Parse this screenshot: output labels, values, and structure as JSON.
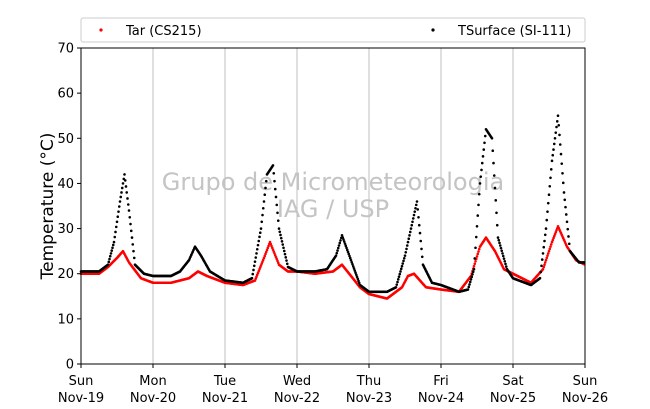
{
  "chart_data": {
    "type": "scatter",
    "title": "",
    "xlabel": "",
    "ylabel": "Temperature (°C)",
    "ylim": [
      0,
      70
    ],
    "yticks": [
      0,
      10,
      20,
      30,
      40,
      50,
      60,
      70
    ],
    "xlim": [
      0,
      7
    ],
    "xticks": [
      {
        "day": "Sun",
        "date": "Nov-19"
      },
      {
        "day": "Mon",
        "date": "Nov-20"
      },
      {
        "day": "Tue",
        "date": "Nov-21"
      },
      {
        "day": "Wed",
        "date": "Nov-22"
      },
      {
        "day": "Thu",
        "date": "Nov-23"
      },
      {
        "day": "Fri",
        "date": "Nov-24"
      },
      {
        "day": "Sat",
        "date": "Nov-25"
      },
      {
        "day": "Sun",
        "date": "Nov-26"
      }
    ],
    "grid": "vertical",
    "legend": {
      "placement": "top, outside"
    },
    "watermark": {
      "line1": "Grupo de Micrometeorologia",
      "line2": "IAG / USP"
    },
    "series": [
      {
        "name": "Tar (CS215)",
        "color": "#ff0000",
        "x": [
          "Nov-19 00:00",
          "Nov-19 06:00",
          "Nov-19 09:00",
          "Nov-19 12:00",
          "Nov-19 14:00",
          "Nov-19 16:00",
          "Nov-19 20:00",
          "Nov-20 00:00",
          "Nov-20 06:00",
          "Nov-20 12:00",
          "Nov-20 15:00",
          "Nov-20 18:00",
          "Nov-21 00:00",
          "Nov-21 06:00",
          "Nov-21 10:00",
          "Nov-21 13:00",
          "Nov-21 15:00",
          "Nov-21 18:00",
          "Nov-21 21:00",
          "Nov-22 00:00",
          "Nov-22 06:00",
          "Nov-22 12:00",
          "Nov-22 15:00",
          "Nov-22 18:00",
          "Nov-22 21:00",
          "Nov-23 00:00",
          "Nov-23 06:00",
          "Nov-23 11:00",
          "Nov-23 13:00",
          "Nov-23 15:00",
          "Nov-23 19:00",
          "Nov-24 00:00",
          "Nov-24 06:00",
          "Nov-24 10:00",
          "Nov-24 13:00",
          "Nov-24 15:00",
          "Nov-24 18:00",
          "Nov-24 21:00",
          "Nov-25 00:00",
          "Nov-25 06:00",
          "Nov-25 10:00",
          "Nov-25 13:00",
          "Nov-25 15:00",
          "Nov-25 18:00",
          "Nov-25 21:00",
          "Nov-26 00:00"
        ],
        "y": [
          20.0,
          20.0,
          21.5,
          23.5,
          25.0,
          22.5,
          19.0,
          18.0,
          18.0,
          19.0,
          20.5,
          19.5,
          18.0,
          17.5,
          18.5,
          23.5,
          27.0,
          22.0,
          20.5,
          20.5,
          20.0,
          20.5,
          22.0,
          19.5,
          17.0,
          15.5,
          14.5,
          17.0,
          19.5,
          20.0,
          17.0,
          16.5,
          16.0,
          19.5,
          26.0,
          28.0,
          25.0,
          21.0,
          20.0,
          18.0,
          21.0,
          27.0,
          30.5,
          26.0,
          23.0,
          22.0
        ]
      },
      {
        "name": "TSurface (SI-111)",
        "color": "#000000",
        "x": [
          "Nov-19 00:00",
          "Nov-19 06:00",
          "Nov-19 09:00",
          "Nov-19 11:00",
          "Nov-19 13:00",
          "Nov-19 14:30",
          "Nov-19 16:00",
          "Nov-19 18:00",
          "Nov-19 21:00",
          "Nov-20 00:00",
          "Nov-20 06:00",
          "Nov-20 09:00",
          "Nov-20 12:00",
          "Nov-20 14:00",
          "Nov-20 16:00",
          "Nov-20 19:00",
          "Nov-21 00:00",
          "Nov-21 06:00",
          "Nov-21 09:00",
          "Nov-21 12:00",
          "Nov-21 14:00",
          "Nov-21 16:00",
          "Nov-21 18:00",
          "Nov-21 21:00",
          "Nov-22 00:00",
          "Nov-22 06:00",
          "Nov-22 10:00",
          "Nov-22 13:00",
          "Nov-22 15:00",
          "Nov-22 18:00",
          "Nov-22 21:00",
          "Nov-23 00:00",
          "Nov-23 06:00",
          "Nov-23 09:00",
          "Nov-23 12:00",
          "Nov-23 14:00",
          "Nov-23 16:00",
          "Nov-23 18:00",
          "Nov-23 21:00",
          "Nov-24 00:00",
          "Nov-24 06:00",
          "Nov-24 09:00",
          "Nov-24 11:00",
          "Nov-24 13:00",
          "Nov-24 15:00",
          "Nov-24 17:00",
          "Nov-24 19:00",
          "Nov-24 22:00",
          "Nov-25 00:00",
          "Nov-25 06:00",
          "Nov-25 09:00",
          "Nov-25 11:00",
          "Nov-25 13:00",
          "Nov-25 15:00",
          "Nov-25 17:00",
          "Nov-25 19:00",
          "Nov-25 22:00",
          "Nov-26 00:00"
        ],
        "y": [
          20.5,
          20.5,
          22.0,
          27.0,
          36.0,
          42.0,
          34.0,
          22.0,
          20.0,
          19.5,
          19.5,
          20.5,
          23.0,
          26.0,
          24.0,
          20.5,
          18.5,
          18.0,
          19.0,
          30.0,
          42.0,
          44.0,
          30.0,
          21.5,
          20.5,
          20.5,
          21.0,
          24.0,
          28.5,
          23.0,
          17.5,
          16.0,
          16.0,
          17.0,
          24.0,
          30.0,
          36.0,
          22.0,
          18.0,
          17.5,
          16.0,
          16.5,
          21.0,
          40.0,
          52.0,
          50.0,
          28.0,
          21.0,
          19.0,
          17.5,
          19.0,
          30.0,
          45.0,
          55.0,
          38.0,
          25.0,
          22.5,
          22.5
        ]
      }
    ]
  }
}
